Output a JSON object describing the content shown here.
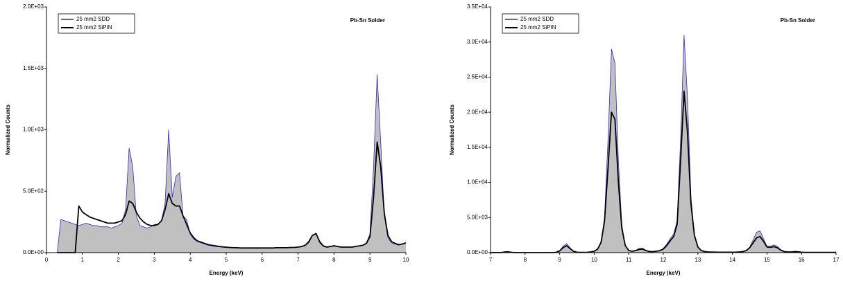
{
  "chart_data": [
    {
      "type": "line",
      "annotation": "Pb-Sn Solder",
      "xlabel": "Energy (keV)",
      "ylabel": "Normalized Counts",
      "legend": "upper left",
      "xlim": [
        0,
        10
      ],
      "xticks": [
        0,
        1,
        2,
        3,
        4,
        5,
        6,
        7,
        8,
        9,
        10
      ],
      "ylim": [
        0,
        2000
      ],
      "yticks": [
        {
          "value": 0,
          "label": "0.0E+00"
        },
        {
          "value": 500,
          "label": "5.0E+02"
        },
        {
          "value": 1000,
          "label": "1.0E+03"
        },
        {
          "value": 1500,
          "label": "1.5E+03"
        },
        {
          "value": 2000,
          "label": "2.0E+03"
        }
      ],
      "x": [
        0.3,
        0.4,
        0.5,
        0.6,
        0.7,
        0.8,
        0.9,
        1.0,
        1.1,
        1.2,
        1.3,
        1.4,
        1.5,
        1.6,
        1.7,
        1.8,
        1.9,
        2.0,
        2.1,
        2.2,
        2.3,
        2.4,
        2.5,
        2.6,
        2.7,
        2.8,
        2.9,
        3.0,
        3.1,
        3.2,
        3.3,
        3.4,
        3.5,
        3.6,
        3.7,
        3.8,
        3.9,
        4.0,
        4.1,
        4.2,
        4.3,
        4.4,
        4.5,
        4.6,
        4.7,
        4.8,
        4.9,
        5.0,
        5.1,
        5.2,
        5.3,
        5.4,
        5.5,
        5.6,
        5.7,
        5.8,
        5.9,
        6.0,
        6.1,
        6.2,
        6.3,
        6.4,
        6.5,
        6.6,
        6.7,
        6.8,
        6.9,
        7.0,
        7.1,
        7.2,
        7.3,
        7.4,
        7.5,
        7.6,
        7.7,
        7.8,
        7.9,
        8.0,
        8.1,
        8.2,
        8.3,
        8.4,
        8.5,
        8.6,
        8.7,
        8.8,
        8.9,
        9.0,
        9.1,
        9.2,
        9.3,
        9.4,
        9.5,
        9.6,
        9.7,
        9.8,
        9.9,
        10.0
      ],
      "series": [
        {
          "name": "25 mm2 SDD",
          "color": "#2b2bc8",
          "fill": "#c0c0c0",
          "values": [
            0,
            270,
            260,
            250,
            240,
            230,
            220,
            230,
            240,
            230,
            220,
            220,
            210,
            210,
            210,
            200,
            210,
            220,
            240,
            350,
            850,
            700,
            300,
            220,
            210,
            200,
            210,
            230,
            230,
            260,
            400,
            1000,
            450,
            620,
            650,
            300,
            270,
            150,
            110,
            90,
            80,
            70,
            60,
            55,
            50,
            48,
            45,
            42,
            40,
            40,
            38,
            38,
            38,
            38,
            38,
            38,
            38,
            38,
            38,
            38,
            38,
            38,
            40,
            40,
            40,
            40,
            42,
            45,
            50,
            60,
            80,
            140,
            160,
            80,
            50,
            45,
            50,
            60,
            50,
            45,
            45,
            45,
            45,
            50,
            55,
            60,
            80,
            150,
            700,
            1450,
            900,
            300,
            120,
            80,
            70,
            60,
            70,
            80
          ]
        },
        {
          "name": "25 mm2 SiPIN",
          "color": "#000000",
          "values": [
            0,
            0,
            0,
            0,
            0,
            0,
            380,
            330,
            310,
            290,
            280,
            270,
            260,
            250,
            240,
            240,
            240,
            250,
            260,
            310,
            420,
            400,
            330,
            280,
            250,
            230,
            220,
            220,
            230,
            260,
            350,
            480,
            400,
            380,
            380,
            300,
            230,
            160,
            120,
            95,
            85,
            75,
            65,
            60,
            55,
            50,
            47,
            44,
            42,
            40,
            40,
            38,
            38,
            38,
            38,
            38,
            38,
            38,
            38,
            38,
            38,
            40,
            40,
            40,
            40,
            42,
            42,
            45,
            50,
            60,
            90,
            140,
            155,
            90,
            55,
            45,
            50,
            55,
            50,
            45,
            45,
            45,
            45,
            50,
            55,
            60,
            75,
            130,
            450,
            900,
            700,
            320,
            140,
            90,
            75,
            65,
            70,
            80
          ]
        }
      ]
    },
    {
      "type": "line",
      "annotation": "Pb-Sn Solder",
      "xlabel": "Energy (keV)",
      "ylabel": "Normalized Counts",
      "legend": "upper left",
      "xlim": [
        7,
        17
      ],
      "xticks": [
        7,
        8,
        9,
        10,
        11,
        12,
        13,
        14,
        15,
        16,
        17
      ],
      "ylim": [
        0,
        35000
      ],
      "yticks": [
        {
          "value": 0,
          "label": "0.0E+00"
        },
        {
          "value": 5000,
          "label": "5.0E+03"
        },
        {
          "value": 10000,
          "label": "1.0E+04"
        },
        {
          "value": 15000,
          "label": "1.5E+04"
        },
        {
          "value": 20000,
          "label": "2.0E+04"
        },
        {
          "value": 25000,
          "label": "2.5E+04"
        },
        {
          "value": 30000,
          "label": "3.0E+04"
        },
        {
          "value": 35000,
          "label": "3.5E+04"
        }
      ],
      "x": [
        7.0,
        7.1,
        7.2,
        7.3,
        7.4,
        7.5,
        7.6,
        7.7,
        7.8,
        7.9,
        8.0,
        8.1,
        8.2,
        8.3,
        8.4,
        8.5,
        8.6,
        8.7,
        8.8,
        8.9,
        9.0,
        9.1,
        9.2,
        9.3,
        9.4,
        9.5,
        9.6,
        9.7,
        9.8,
        9.9,
        10.0,
        10.1,
        10.2,
        10.3,
        10.4,
        10.5,
        10.6,
        10.7,
        10.8,
        10.9,
        11.0,
        11.1,
        11.2,
        11.3,
        11.4,
        11.5,
        11.6,
        11.7,
        11.8,
        11.9,
        12.0,
        12.1,
        12.2,
        12.3,
        12.4,
        12.5,
        12.6,
        12.7,
        12.8,
        12.9,
        13.0,
        13.1,
        13.2,
        13.3,
        13.4,
        13.5,
        13.6,
        13.7,
        13.8,
        13.9,
        14.0,
        14.1,
        14.2,
        14.3,
        14.4,
        14.5,
        14.6,
        14.7,
        14.8,
        14.9,
        15.0,
        15.1,
        15.2,
        15.3,
        15.4,
        15.5,
        15.6,
        15.7,
        15.8,
        15.9,
        16.0,
        16.1,
        16.2,
        16.3,
        16.4,
        16.5,
        16.6,
        16.7,
        16.8,
        16.9,
        17.0
      ],
      "series": [
        {
          "name": "25 mm2 SDD",
          "color": "#2b2bc8",
          "fill": "#c0c0c0",
          "values": [
            0,
            0,
            0,
            0,
            100,
            150,
            50,
            0,
            0,
            0,
            0,
            0,
            0,
            0,
            0,
            0,
            0,
            0,
            0,
            50,
            300,
            900,
            1300,
            700,
            200,
            50,
            30,
            30,
            50,
            100,
            200,
            500,
            1500,
            5000,
            16000,
            29000,
            27000,
            13000,
            4000,
            1000,
            300,
            200,
            300,
            600,
            650,
            300,
            150,
            150,
            200,
            300,
            600,
            1200,
            2000,
            2600,
            4500,
            16000,
            31000,
            22000,
            8000,
            2500,
            800,
            300,
            150,
            100,
            80,
            70,
            60,
            60,
            60,
            60,
            60,
            70,
            100,
            150,
            300,
            800,
            1800,
            2900,
            3100,
            2000,
            900,
            900,
            1100,
            900,
            400,
            150,
            100,
            100,
            200,
            150,
            80,
            30,
            30,
            30,
            30,
            30,
            30,
            30,
            30,
            30,
            30
          ]
        },
        {
          "name": "25 mm2 SiPIN",
          "color": "#000000",
          "values": [
            0,
            0,
            0,
            0,
            80,
            120,
            50,
            0,
            0,
            0,
            0,
            0,
            0,
            0,
            0,
            0,
            0,
            0,
            0,
            50,
            250,
            700,
            1000,
            600,
            200,
            60,
            30,
            30,
            50,
            100,
            200,
            500,
            1500,
            4500,
            12000,
            20000,
            19000,
            10000,
            3500,
            1000,
            300,
            200,
            300,
            450,
            500,
            300,
            150,
            150,
            200,
            300,
            500,
            1000,
            1700,
            2300,
            4000,
            13000,
            23000,
            17000,
            7000,
            2500,
            800,
            300,
            150,
            100,
            80,
            70,
            60,
            60,
            60,
            60,
            60,
            70,
            100,
            150,
            300,
            700,
            1400,
            2100,
            2300,
            1600,
            800,
            750,
            850,
            700,
            350,
            150,
            100,
            100,
            150,
            120,
            60,
            30,
            30,
            30,
            30,
            30,
            30,
            30,
            30,
            30,
            30
          ]
        }
      ]
    }
  ]
}
